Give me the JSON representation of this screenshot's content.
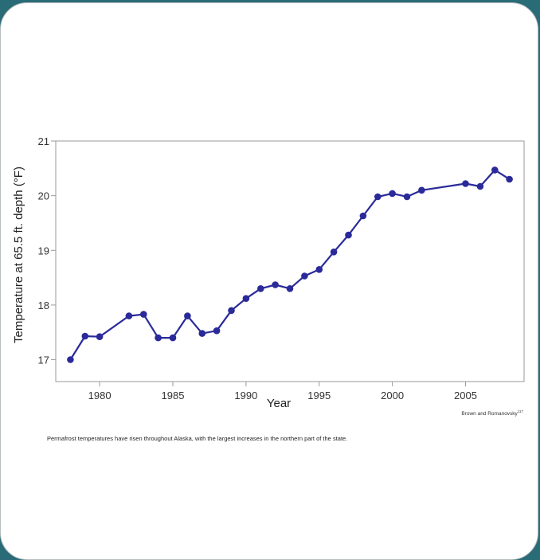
{
  "chart_data": {
    "type": "line",
    "title": "",
    "xlabel": "Year",
    "ylabel": "Temperature at 65.5 ft. depth (°F)",
    "xlim": [
      1977,
      2009
    ],
    "ylim": [
      16.6,
      21.0
    ],
    "x_ticks": [
      1980,
      1985,
      1990,
      1995,
      2000,
      2005
    ],
    "x_tick_labels": [
      "1980",
      "1985",
      "1990",
      "1995",
      "2000",
      "2005"
    ],
    "y_ticks": [
      17,
      18,
      19,
      20,
      21
    ],
    "y_tick_labels": [
      "17",
      "18",
      "19",
      "20",
      "21"
    ],
    "grid": false,
    "color": "#2a2a9a",
    "series": [
      {
        "x": [
          1978,
          1979,
          1980,
          1982,
          1983,
          1984,
          1985,
          1986,
          1987,
          1988,
          1989,
          1990,
          1991,
          1992,
          1993,
          1994,
          1995,
          1996,
          1997,
          1998,
          1999,
          2000,
          2001,
          2002,
          2005,
          2006,
          2007,
          2008
        ],
        "y": [
          17.0,
          17.43,
          17.42,
          17.8,
          17.83,
          17.4,
          17.4,
          17.8,
          17.48,
          17.53,
          17.9,
          18.12,
          18.3,
          18.37,
          18.3,
          18.53,
          18.65,
          18.97,
          19.28,
          19.63,
          19.98,
          20.04,
          19.98,
          20.1,
          20.22,
          20.17,
          20.47,
          20.3
        ]
      }
    ]
  },
  "credit": {
    "text": "Brown and Romanovsky",
    "superscript": "117"
  },
  "caption": "Permafrost temperatures have risen throughout Alaska, with the largest increases in the northern part of the state."
}
